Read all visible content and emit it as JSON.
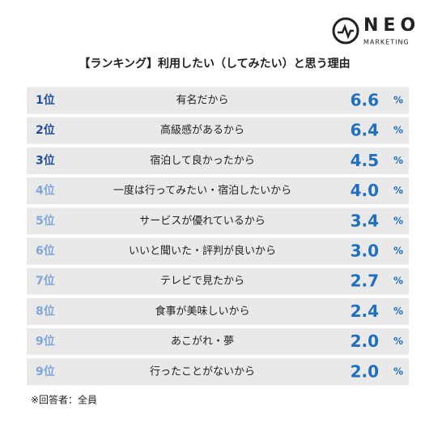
{
  "logo": {
    "name": "NEO",
    "sub": "MARKETING"
  },
  "title": "【ランキング】利用したい（してみたい）と思う理由",
  "unit": "%",
  "rows": [
    {
      "rank": "1位",
      "reason": "有名だから",
      "value": "6.6"
    },
    {
      "rank": "2位",
      "reason": "高級感があるから",
      "value": "6.4"
    },
    {
      "rank": "3位",
      "reason": "宿泊して良かったから",
      "value": "4.5"
    },
    {
      "rank": "4位",
      "reason": "一度は行ってみたい・宿泊したいから",
      "value": "4.0"
    },
    {
      "rank": "5位",
      "reason": "サービスが優れているから",
      "value": "3.4"
    },
    {
      "rank": "6位",
      "reason": "いいと聞いた・評判が良いから",
      "value": "3.0"
    },
    {
      "rank": "7位",
      "reason": "テレビで見たから",
      "value": "2.7"
    },
    {
      "rank": "8位",
      "reason": "食事が美味しいから",
      "value": "2.4"
    },
    {
      "rank": "9位",
      "reason": "あこがれ・夢",
      "value": "2.0"
    },
    {
      "rank": "9位",
      "reason": "行ったことがないから",
      "value": "2.0"
    }
  ],
  "footnote": "※回答者：全員"
}
